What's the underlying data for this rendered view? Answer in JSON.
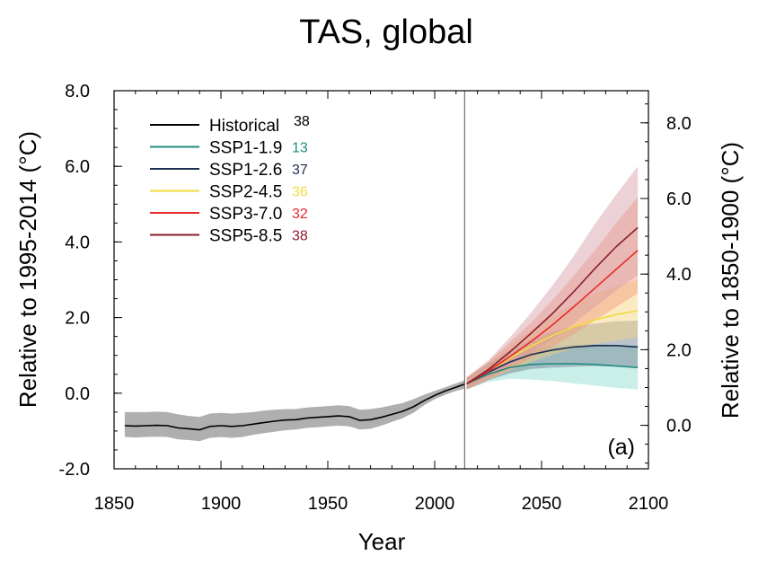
{
  "chart_data": {
    "type": "line",
    "title": "TAS, global",
    "xlabel": "Year",
    "ylabel_left": "Relative to 1995-2014 (°C)",
    "ylabel_right": "Relative to 1850-1900 (°C)",
    "panel_label": "(a)",
    "xlim": [
      1850,
      2100
    ],
    "ylim": [
      -2.0,
      8.0
    ],
    "right_axis_offset": 0.85,
    "x_ticks": [
      {
        "value": 1850,
        "label": "1850"
      },
      {
        "value": 1900,
        "label": "1900"
      },
      {
        "value": 1950,
        "label": "1950"
      },
      {
        "value": 2000,
        "label": "2000"
      },
      {
        "value": 2050,
        "label": "2050"
      },
      {
        "value": 2100,
        "label": "2100"
      }
    ],
    "y_ticks_left": [
      {
        "value": -2.0,
        "label": "-2.0"
      },
      {
        "value": 0.0,
        "label": "0.0"
      },
      {
        "value": 2.0,
        "label": "2.0"
      },
      {
        "value": 4.0,
        "label": "4.0"
      },
      {
        "value": 6.0,
        "label": "6.0"
      },
      {
        "value": 8.0,
        "label": "8.0"
      }
    ],
    "y_ticks_right": [
      {
        "value": 0.0,
        "label": "0.0"
      },
      {
        "value": 2.0,
        "label": "2.0"
      },
      {
        "value": 4.0,
        "label": "4.0"
      },
      {
        "value": 6.0,
        "label": "6.0"
      },
      {
        "value": 8.0,
        "label": "8.0"
      }
    ],
    "vertical_line_x": 2014,
    "legend_position": "top-left",
    "series": [
      {
        "name": "Historical",
        "count": "38",
        "color": "#000000",
        "count_color": "#000000",
        "band_color": "#a6a6a6",
        "band_opacity": 0.9,
        "x": [
          1855,
          1860,
          1865,
          1870,
          1875,
          1880,
          1885,
          1890,
          1895,
          1900,
          1905,
          1910,
          1915,
          1920,
          1925,
          1930,
          1935,
          1940,
          1945,
          1950,
          1955,
          1960,
          1965,
          1970,
          1975,
          1980,
          1985,
          1990,
          1995,
          2000,
          2005,
          2010,
          2014
        ],
        "y": [
          -0.86,
          -0.87,
          -0.86,
          -0.85,
          -0.86,
          -0.92,
          -0.94,
          -0.97,
          -0.88,
          -0.86,
          -0.88,
          -0.86,
          -0.82,
          -0.78,
          -0.74,
          -0.71,
          -0.7,
          -0.66,
          -0.64,
          -0.62,
          -0.6,
          -0.62,
          -0.72,
          -0.7,
          -0.64,
          -0.56,
          -0.48,
          -0.36,
          -0.2,
          -0.06,
          0.06,
          0.16,
          0.24
        ],
        "lower": [
          -1.16,
          -1.17,
          -1.16,
          -1.15,
          -1.16,
          -1.22,
          -1.24,
          -1.27,
          -1.18,
          -1.16,
          -1.18,
          -1.16,
          -1.1,
          -1.06,
          -1.02,
          -0.98,
          -0.96,
          -0.92,
          -0.9,
          -0.88,
          -0.86,
          -0.88,
          -0.96,
          -0.94,
          -0.86,
          -0.76,
          -0.66,
          -0.52,
          -0.32,
          -0.16,
          -0.04,
          0.06,
          0.12
        ],
        "upper": [
          -0.5,
          -0.5,
          -0.5,
          -0.49,
          -0.5,
          -0.56,
          -0.6,
          -0.63,
          -0.54,
          -0.52,
          -0.54,
          -0.52,
          -0.5,
          -0.46,
          -0.44,
          -0.42,
          -0.42,
          -0.38,
          -0.36,
          -0.34,
          -0.32,
          -0.34,
          -0.44,
          -0.42,
          -0.38,
          -0.32,
          -0.26,
          -0.16,
          -0.04,
          0.06,
          0.16,
          0.26,
          0.34
        ]
      },
      {
        "name": "SSP1-1.9",
        "count": "13",
        "color": "#1f8a7d",
        "count_color": "#1f8a7d",
        "band_color": "#9fe0d6",
        "band_opacity": 0.55,
        "x": [
          2015,
          2025,
          2035,
          2045,
          2055,
          2065,
          2075,
          2085,
          2095
        ],
        "y": [
          0.25,
          0.5,
          0.68,
          0.76,
          0.78,
          0.78,
          0.76,
          0.72,
          0.68
        ],
        "lower": [
          0.1,
          0.3,
          0.38,
          0.36,
          0.32,
          0.26,
          0.2,
          0.14,
          0.1
        ],
        "upper": [
          0.4,
          0.78,
          1.04,
          1.18,
          1.24,
          1.28,
          1.3,
          1.28,
          1.26
        ]
      },
      {
        "name": "SSP1-2.6",
        "count": "37",
        "color": "#1d2e52",
        "count_color": "#1d2e52",
        "band_color": "#6b7a8f",
        "band_opacity": 0.45,
        "x": [
          2015,
          2025,
          2035,
          2045,
          2055,
          2065,
          2075,
          2085,
          2095
        ],
        "y": [
          0.25,
          0.55,
          0.82,
          1.02,
          1.14,
          1.22,
          1.26,
          1.26,
          1.22
        ],
        "lower": [
          0.1,
          0.34,
          0.52,
          0.64,
          0.68,
          0.7,
          0.72,
          0.7,
          0.68
        ],
        "upper": [
          0.42,
          0.78,
          1.14,
          1.42,
          1.62,
          1.76,
          1.84,
          1.9,
          1.92
        ]
      },
      {
        "name": "SSP2-4.5",
        "count": "36",
        "color": "#f0dc3a",
        "count_color": "#f0dc3a",
        "band_color": "#f6d37a",
        "band_opacity": 0.45,
        "x": [
          2015,
          2025,
          2035,
          2045,
          2055,
          2065,
          2075,
          2085,
          2095
        ],
        "y": [
          0.25,
          0.58,
          0.92,
          1.24,
          1.52,
          1.76,
          1.94,
          2.08,
          2.18
        ],
        "lower": [
          0.1,
          0.36,
          0.6,
          0.82,
          1.02,
          1.18,
          1.3,
          1.4,
          1.46
        ],
        "upper": [
          0.42,
          0.82,
          1.26,
          1.68,
          2.04,
          2.36,
          2.62,
          2.84,
          3.0
        ]
      },
      {
        "name": "SSP3-7.0",
        "count": "32",
        "color": "#e8272a",
        "count_color": "#e8272a",
        "band_color": "#f3977d",
        "band_opacity": 0.45,
        "x": [
          2015,
          2025,
          2035,
          2045,
          2055,
          2065,
          2075,
          2085,
          2095
        ],
        "y": [
          0.25,
          0.58,
          0.96,
          1.36,
          1.8,
          2.28,
          2.78,
          3.28,
          3.78
        ],
        "lower": [
          0.1,
          0.36,
          0.62,
          0.92,
          1.22,
          1.56,
          1.92,
          2.28,
          2.64
        ],
        "upper": [
          0.42,
          0.82,
          1.34,
          1.86,
          2.46,
          3.1,
          3.78,
          4.5,
          5.2
        ]
      },
      {
        "name": "SSP5-8.5",
        "count": "38",
        "color": "#8b1c2c",
        "count_color": "#8b1c2c",
        "band_color": "#d49ba3",
        "band_opacity": 0.45,
        "x": [
          2015,
          2025,
          2035,
          2045,
          2055,
          2065,
          2075,
          2085,
          2095
        ],
        "y": [
          0.25,
          0.62,
          1.08,
          1.58,
          2.1,
          2.68,
          3.3,
          3.88,
          4.38
        ],
        "lower": [
          0.1,
          0.38,
          0.7,
          1.06,
          1.42,
          1.84,
          2.28,
          2.72,
          3.12
        ],
        "upper": [
          0.42,
          0.86,
          1.46,
          2.12,
          2.84,
          3.62,
          4.48,
          5.26,
          6.0
        ]
      }
    ]
  }
}
